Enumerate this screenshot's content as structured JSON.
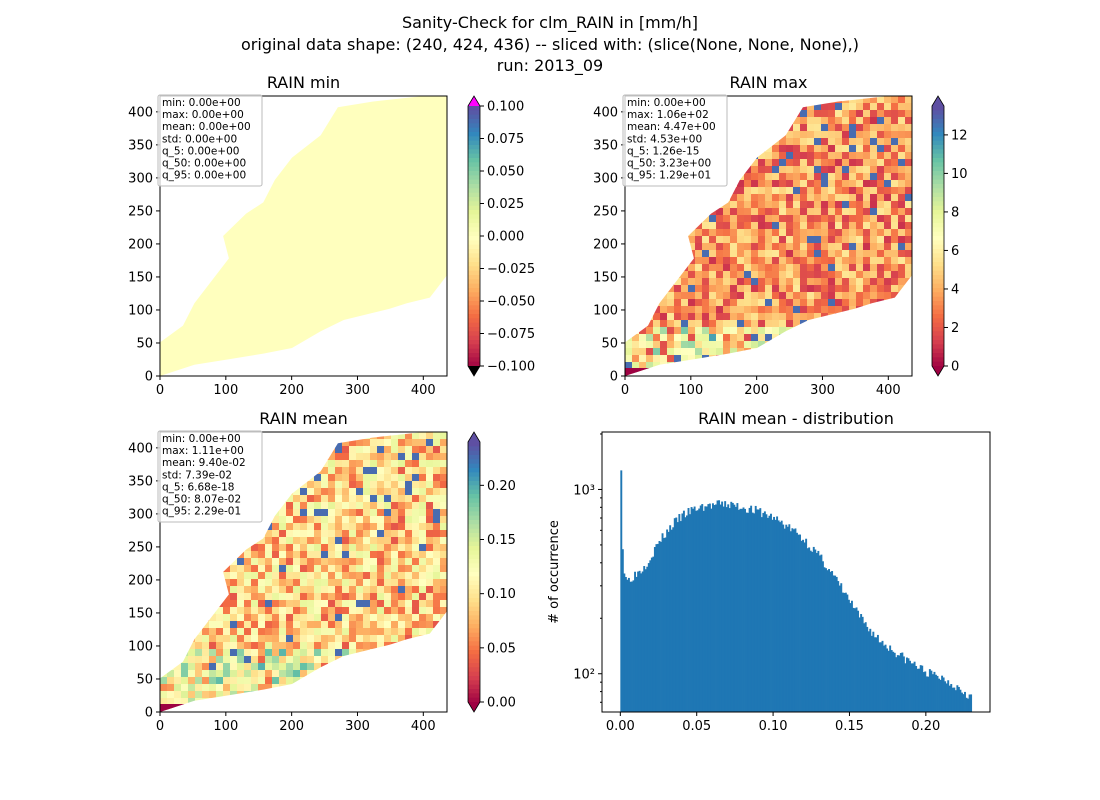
{
  "figure": {
    "title_lines": [
      "Sanity-Check for clm_RAIN in [mm/h]",
      "original data shape: (240, 424, 436) -- sliced with: (slice(None, None, None),)",
      "run: 2013_09"
    ]
  },
  "chart_data": [
    {
      "id": "rain-min",
      "type": "heatmap",
      "title": "RAIN min",
      "xlim": [
        0,
        436
      ],
      "ylim": [
        0,
        424
      ],
      "xticks": [
        0,
        100,
        200,
        300,
        400
      ],
      "yticks": [
        0,
        50,
        100,
        150,
        200,
        250,
        300,
        350,
        400
      ],
      "colormap": "Spectral",
      "colorbar": {
        "range": [
          -0.1,
          0.1
        ],
        "ticks": [
          "0.100",
          "0.075",
          "0.050",
          "0.025",
          "0.000",
          "−0.025",
          "−0.050",
          "−0.075",
          "−0.100"
        ],
        "over_color": "#ff00ff",
        "under_color": "#000000"
      },
      "stats": [
        "min: 0.00e+00",
        "max: 0.00e+00",
        "mean: 0.00e+00",
        "std: 0.00e+00",
        "q_5: 0.00e+00",
        "q_50: 0.00e+00",
        "q_95: 0.00e+00"
      ]
    },
    {
      "id": "rain-max",
      "type": "heatmap",
      "title": "RAIN max",
      "xlim": [
        0,
        436
      ],
      "ylim": [
        0,
        424
      ],
      "xticks": [
        0,
        100,
        200,
        300,
        400
      ],
      "yticks": [
        0,
        50,
        100,
        150,
        200,
        250,
        300,
        350,
        400
      ],
      "colormap": "Spectral",
      "colorbar": {
        "range": [
          0,
          13.5
        ],
        "ticks": [
          "12",
          "10",
          "8",
          "6",
          "4",
          "2",
          "0"
        ],
        "extend": "both"
      },
      "stats": [
        "min: 0.00e+00",
        "max: 1.06e+02",
        "mean: 4.47e+00",
        "std: 4.53e+00",
        "q_5: 1.26e-15",
        "q_50: 3.23e+00",
        "q_95: 1.29e+01"
      ]
    },
    {
      "id": "rain-mean",
      "type": "heatmap",
      "title": "RAIN mean",
      "xlim": [
        0,
        436
      ],
      "ylim": [
        0,
        424
      ],
      "xticks": [
        0,
        100,
        200,
        300,
        400
      ],
      "yticks": [
        0,
        50,
        100,
        150,
        200,
        250,
        300,
        350,
        400
      ],
      "colormap": "Spectral",
      "colorbar": {
        "range": [
          0,
          0.24
        ],
        "ticks": [
          "0.20",
          "0.15",
          "0.10",
          "0.05",
          "0.00"
        ],
        "extend": "both"
      },
      "stats": [
        "min: 0.00e+00",
        "max: 1.11e+00",
        "mean: 9.40e-02",
        "std: 7.39e-02",
        "q_5: 6.68e-18",
        "q_50: 8.07e-02",
        "q_95: 2.29e-01"
      ]
    },
    {
      "id": "rain-mean-distribution",
      "type": "bar",
      "title": "RAIN mean - distribution",
      "xlabel": "",
      "ylabel": "# of occurrence",
      "yscale": "log",
      "xlim": [
        -0.012,
        0.242
      ],
      "ylim": [
        62,
        2050
      ],
      "xticks": [
        "0.00",
        "0.05",
        "0.10",
        "0.15",
        "0.20"
      ],
      "yticks": [
        "10²",
        "10³"
      ],
      "bar_color": "#1f77b4",
      "bin_width": 0.001,
      "profile_points": [
        [
          0.0,
          1350
        ],
        [
          0.001,
          480
        ],
        [
          0.002,
          360
        ],
        [
          0.004,
          320
        ],
        [
          0.006,
          330
        ],
        [
          0.01,
          350
        ],
        [
          0.015,
          380
        ],
        [
          0.02,
          440
        ],
        [
          0.025,
          520
        ],
        [
          0.03,
          590
        ],
        [
          0.035,
          660
        ],
        [
          0.04,
          720
        ],
        [
          0.045,
          760
        ],
        [
          0.05,
          790
        ],
        [
          0.055,
          810
        ],
        [
          0.06,
          820
        ],
        [
          0.065,
          830
        ],
        [
          0.07,
          830
        ],
        [
          0.075,
          815
        ],
        [
          0.08,
          800
        ],
        [
          0.085,
          780
        ],
        [
          0.09,
          760
        ],
        [
          0.095,
          730
        ],
        [
          0.1,
          700
        ],
        [
          0.105,
          660
        ],
        [
          0.11,
          620
        ],
        [
          0.115,
          580
        ],
        [
          0.12,
          530
        ],
        [
          0.125,
          480
        ],
        [
          0.13,
          430
        ],
        [
          0.135,
          380
        ],
        [
          0.14,
          330
        ],
        [
          0.145,
          285
        ],
        [
          0.15,
          245
        ],
        [
          0.155,
          210
        ],
        [
          0.16,
          185
        ],
        [
          0.165,
          165
        ],
        [
          0.17,
          150
        ],
        [
          0.175,
          140
        ],
        [
          0.18,
          130
        ],
        [
          0.185,
          122
        ],
        [
          0.19,
          115
        ],
        [
          0.195,
          108
        ],
        [
          0.2,
          102
        ],
        [
          0.205,
          98
        ],
        [
          0.21,
          95
        ],
        [
          0.215,
          90
        ],
        [
          0.22,
          85
        ],
        [
          0.225,
          80
        ],
        [
          0.229,
          75
        ]
      ]
    }
  ]
}
